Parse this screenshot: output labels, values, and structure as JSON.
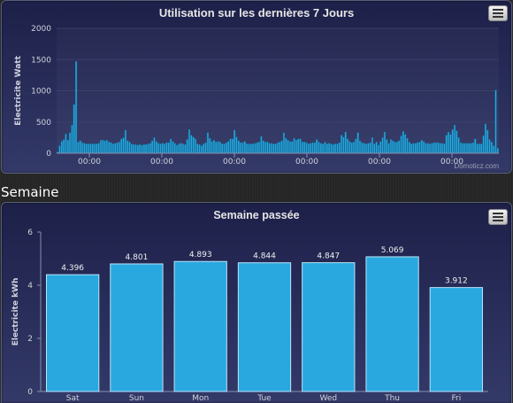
{
  "colors": {
    "bar": "#29a8e0",
    "bar_stroke": "#0e6d98",
    "axis_text": "#cfd2dc",
    "grid": "#3a4068"
  },
  "panel_daily": {
    "title": "Utilisation sur les dernières 7 Jours",
    "menu_icon": "menu-icon",
    "credits": "Domoticz.com",
    "chart_data": {
      "type": "bar",
      "title": "Utilisation sur les dernières 7 Jours",
      "ylabel": "Electricite Watt",
      "ylim": [
        0,
        2000
      ],
      "yticks": [
        "0",
        "500",
        "1000",
        "1500",
        "2000"
      ],
      "xticks": [
        "00:00",
        "00:00",
        "00:00",
        "00:00",
        "00:00",
        "00:00"
      ],
      "grid": true,
      "values": [
        20,
        120,
        190,
        220,
        310,
        210,
        330,
        450,
        780,
        1470,
        180,
        200,
        170,
        160,
        150,
        150,
        150,
        150,
        150,
        150,
        160,
        210,
        210,
        200,
        210,
        180,
        170,
        150,
        160,
        170,
        180,
        230,
        250,
        370,
        200,
        180,
        150,
        140,
        140,
        130,
        140,
        130,
        140,
        140,
        150,
        160,
        200,
        250,
        190,
        160,
        150,
        160,
        150,
        170,
        170,
        230,
        190,
        160,
        130,
        150,
        160,
        150,
        140,
        220,
        380,
        290,
        260,
        230,
        150,
        140,
        120,
        150,
        170,
        330,
        240,
        190,
        210,
        180,
        190,
        180,
        150,
        150,
        170,
        190,
        230,
        230,
        370,
        260,
        200,
        170,
        170,
        190,
        150,
        150,
        150,
        150,
        160,
        170,
        180,
        270,
        200,
        180,
        180,
        160,
        160,
        150,
        150,
        170,
        180,
        200,
        330,
        240,
        210,
        190,
        190,
        240,
        210,
        230,
        230,
        180,
        180,
        170,
        150,
        160,
        170,
        170,
        220,
        180,
        160,
        150,
        180,
        150,
        160,
        150,
        140,
        150,
        150,
        170,
        290,
        260,
        340,
        230,
        190,
        170,
        180,
        230,
        330,
        200,
        170,
        160,
        150,
        160,
        170,
        250,
        150,
        180,
        130,
        190,
        250,
        340,
        220,
        160,
        220,
        200,
        180,
        180,
        200,
        280,
        350,
        300,
        240,
        180,
        150,
        160,
        160,
        170,
        180,
        210,
        190,
        160,
        160,
        150,
        160,
        170,
        170,
        170,
        160,
        160,
        150,
        290,
        340,
        300,
        380,
        450,
        360,
        250,
        170,
        160,
        160,
        160,
        160,
        160,
        170,
        230,
        150,
        150,
        150,
        280,
        470,
        370,
        220,
        180,
        120,
        1010,
        80
      ]
    }
  },
  "section_label": "Semaine",
  "panel_weekly": {
    "title": "Semaine passée",
    "menu_icon": "menu-icon",
    "chart_data": {
      "type": "bar",
      "title": "Semaine passée",
      "ylabel": "Electricite kWh",
      "ylim": [
        0,
        6
      ],
      "yticks": [
        "0",
        "2",
        "4",
        "6"
      ],
      "categories": [
        "Sat",
        "Sun",
        "Mon",
        "Tue",
        "Wed",
        "Thu",
        "Fri"
      ],
      "values": [
        4.396,
        4.801,
        4.893,
        4.844,
        4.847,
        5.069,
        3.912
      ],
      "data_labels": [
        "4.396",
        "4.801",
        "4.893",
        "4.844",
        "4.847",
        "5.069",
        "3.912"
      ],
      "grid": false
    }
  }
}
